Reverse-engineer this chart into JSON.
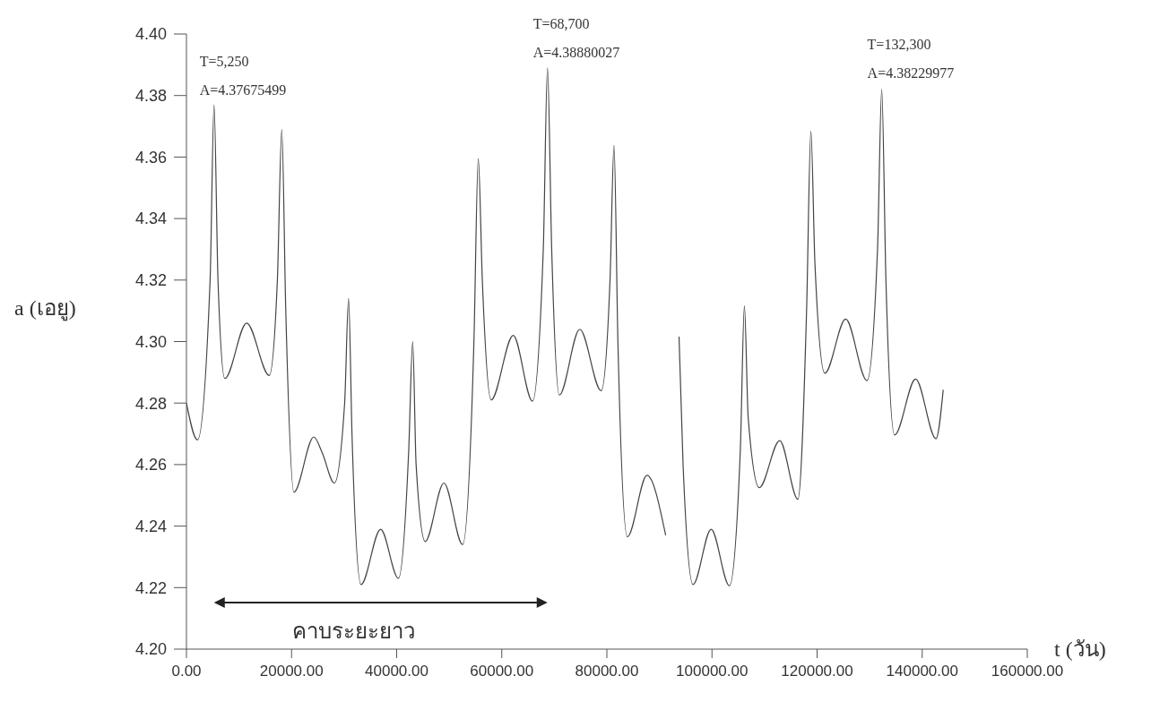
{
  "chart_data": {
    "type": "line",
    "xlabel": "t (วัน)",
    "ylabel": "a (เอยู)",
    "x": [
      0,
      2100,
      4500,
      5250,
      6000,
      7300,
      11460,
      15770,
      17300,
      18140,
      18900,
      20440,
      24240,
      25800,
      28140,
      30100,
      30850,
      31500,
      33220,
      36950,
      40340,
      42300,
      43050,
      43700,
      45430,
      48990,
      52550,
      54700,
      55530,
      56300,
      57970,
      62180,
      65840,
      67900,
      68700,
      69500,
      70950,
      74840,
      78920,
      80600,
      81360,
      82100,
      83900,
      87630,
      91190,
      92400,
      93730,
      94500,
      96400,
      99840,
      103320,
      105400,
      106170,
      106900,
      109000,
      112890,
      116350,
      118000,
      118820,
      119600,
      121470,
      125440,
      129500,
      131500,
      132300,
      133100,
      134750,
      138750,
      142630,
      144000
    ],
    "series": [
      {
        "color": "#444444",
        "values": [
          4.28,
          4.268,
          4.32,
          4.377,
          4.32,
          4.288,
          4.306,
          4.289,
          4.32,
          4.369,
          4.31,
          4.251,
          4.269,
          4.264,
          4.254,
          4.28,
          4.314,
          4.27,
          4.221,
          4.239,
          4.223,
          4.265,
          4.3,
          4.26,
          4.235,
          4.254,
          4.234,
          4.3,
          4.3595,
          4.32,
          4.281,
          4.302,
          4.2806,
          4.33,
          4.389,
          4.33,
          4.2826,
          4.304,
          4.284,
          4.32,
          4.3638,
          4.3,
          4.2365,
          4.2565,
          4.237,
          null,
          4.3016,
          4.26,
          4.221,
          4.239,
          4.2206,
          4.265,
          4.3116,
          4.275,
          4.2525,
          4.2678,
          4.2487,
          4.31,
          4.3684,
          4.325,
          4.2897,
          4.3073,
          4.2873,
          4.33,
          4.382,
          4.32,
          4.2696,
          4.2878,
          4.2684,
          4.2843
        ]
      }
    ],
    "xlim": [
      0,
      160000
    ],
    "xticks": [
      {
        "value": 0,
        "label": "0.00"
      },
      {
        "value": 20000,
        "label": "20000.00"
      },
      {
        "value": 40000,
        "label": "40000.00"
      },
      {
        "value": 60000,
        "label": "60000.00"
      },
      {
        "value": 80000,
        "label": "80000.00"
      },
      {
        "value": 100000,
        "label": "100000.00"
      },
      {
        "value": 120000,
        "label": "120000.00"
      },
      {
        "value": 140000,
        "label": "140000.00"
      },
      {
        "value": 160000,
        "label": "160000.00"
      }
    ],
    "ylim": [
      4.2,
      4.4
    ],
    "yticks": [
      {
        "value": 4.2,
        "label": "4.20"
      },
      {
        "value": 4.22,
        "label": "4.22"
      },
      {
        "value": 4.24,
        "label": "4.24"
      },
      {
        "value": 4.26,
        "label": "4.26"
      },
      {
        "value": 4.28,
        "label": "4.28"
      },
      {
        "value": 4.3,
        "label": "4.30"
      },
      {
        "value": 4.32,
        "label": "4.32"
      },
      {
        "value": 4.34,
        "label": "4.34"
      },
      {
        "value": 4.36,
        "label": "4.36"
      },
      {
        "value": 4.38,
        "label": "4.38"
      },
      {
        "value": 4.4,
        "label": "4.40"
      }
    ],
    "grid": false,
    "legend": false,
    "marker": "none",
    "line_style": "solid",
    "annotations": [
      "T=5,250",
      {
        "text": "A=4.37675499",
        "x": 5250,
        "y": 4.37675499
      },
      "T=68,700",
      {
        "text": "A=4.38880027",
        "x": 68700,
        "y": 4.38880027
      },
      "T=132,300",
      {
        "text": "A=4.38229977",
        "x": 132300,
        "y": 4.38229977
      },
      "คาบระยะยาว"
    ]
  }
}
